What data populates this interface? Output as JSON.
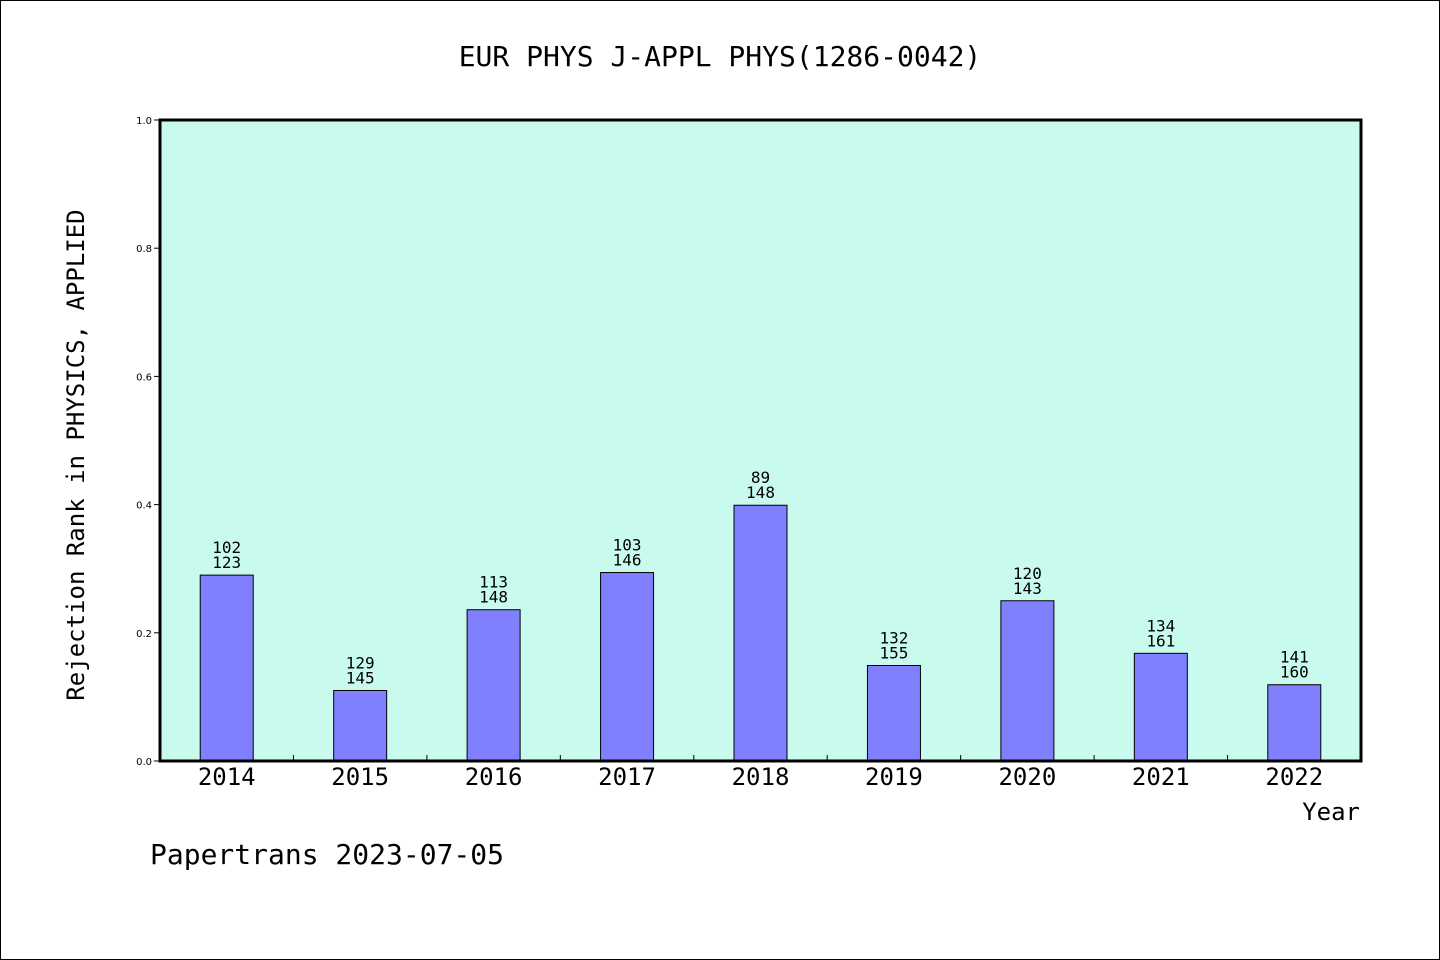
{
  "chart_data": {
    "type": "bar",
    "title": "EUR PHYS J-APPL PHYS(1286-0042)",
    "xlabel": "Year",
    "ylabel": "Rejection Rank in PHYSICS, APPLIED",
    "ylim": [
      0,
      1.0
    ],
    "yticks": [
      "0.0",
      "0.2",
      "0.4",
      "0.6",
      "0.8",
      "1.0"
    ],
    "categories": [
      "2014",
      "2015",
      "2016",
      "2017",
      "2018",
      "2019",
      "2020",
      "2021",
      "2022"
    ],
    "values": [
      0.29,
      0.11,
      0.236,
      0.294,
      0.399,
      0.149,
      0.25,
      0.168,
      0.119
    ],
    "label_top": [
      "102",
      "129",
      "113",
      "103",
      "89",
      "132",
      "120",
      "134",
      "141"
    ],
    "label_bottom": [
      "123",
      "145",
      "148",
      "146",
      "148",
      "155",
      "143",
      "161",
      "160"
    ],
    "grid": false,
    "colors": {
      "plot_background": "#c8fbee",
      "bar_fill": "#8080ff",
      "bar_stroke": "#000000"
    }
  },
  "footer": {
    "credit": "Papertrans 2023-07-05"
  }
}
